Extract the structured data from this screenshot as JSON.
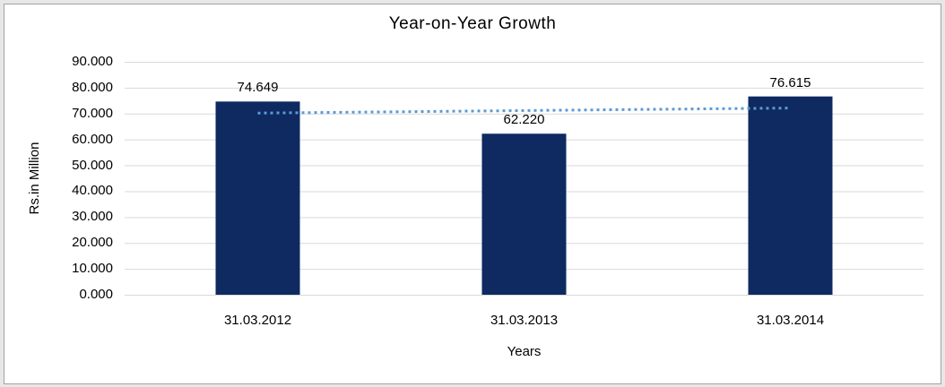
{
  "window": {
    "outer_background": "#E7E7E7",
    "frame_background": "#FFFFFF",
    "frame_border_color": "#A3A3A3"
  },
  "chart_data": {
    "type": "bar",
    "title": "Year-on-Year Growth",
    "xlabel": "Years",
    "ylabel": "Rs.in Million",
    "categories": [
      "31.03.2012",
      "31.03.2013",
      "31.03.2014"
    ],
    "values": [
      74.649,
      62.22,
      76.615
    ],
    "value_labels": [
      "74.649",
      "62.220",
      "76.615"
    ],
    "ylim": [
      0,
      90
    ],
    "ytick_step": 10,
    "ytick_labels": [
      "0.000",
      "10.000",
      "20.000",
      "30.000",
      "40.000",
      "50.000",
      "60.000",
      "70.000",
      "80.000",
      "90.000"
    ],
    "grid": true,
    "grid_color": "#D9D9D9",
    "legend": "none",
    "bar_color": "#0E2A60",
    "text_color": "#000000",
    "trendline": {
      "type": "linear",
      "style": "dotted",
      "color": "#5B9BD5",
      "values": [
        70.183,
        71.161,
        72.139
      ]
    }
  }
}
